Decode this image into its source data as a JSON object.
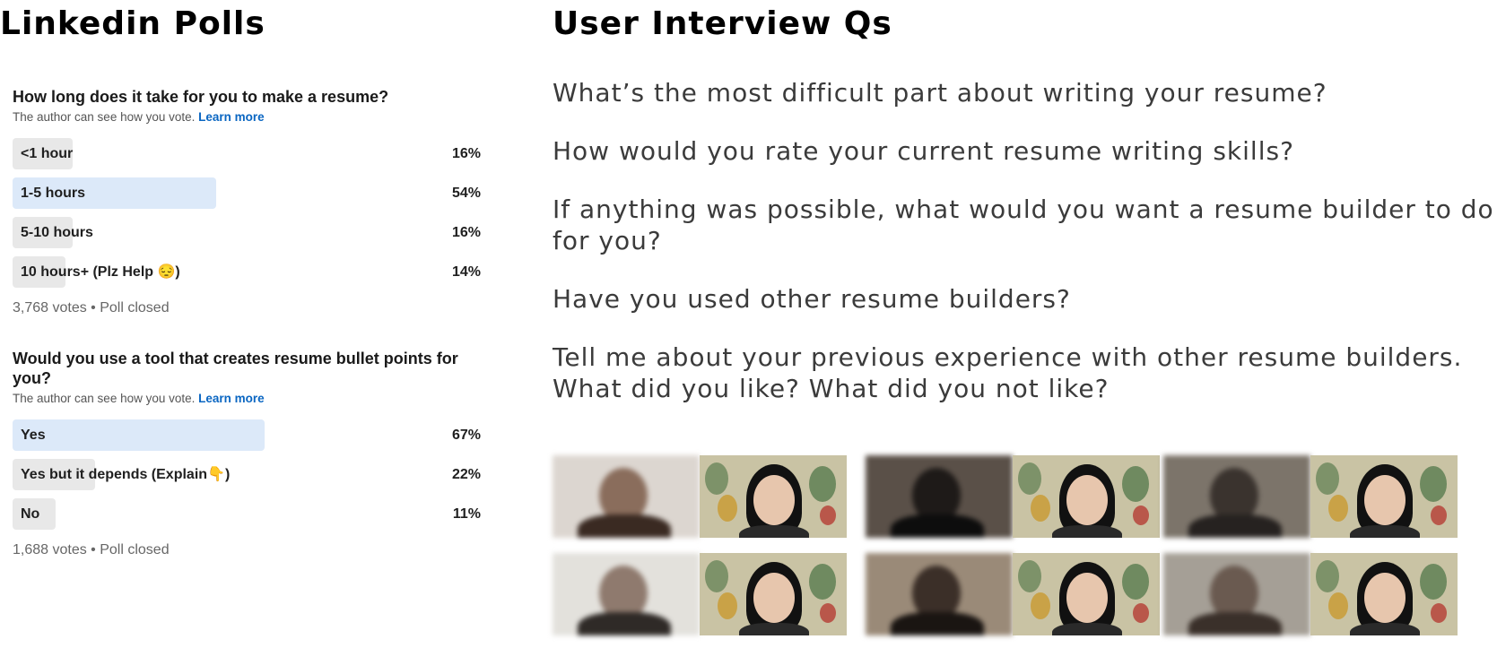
{
  "left": {
    "title": "Linkedin Polls",
    "polls": [
      {
        "question": "How long does it take for you to make a resume?",
        "note": "The author can see how you vote.",
        "learn_more": "Learn more",
        "options": [
          {
            "label": "<1 hour",
            "pct_text": "16%",
            "pct": 16
          },
          {
            "label": "1-5 hours",
            "pct_text": "54%",
            "pct": 54
          },
          {
            "label": "5-10 hours",
            "pct_text": "16%",
            "pct": 16
          },
          {
            "label": "10 hours+ (Plz Help 😔)",
            "pct_text": "14%",
            "pct": 14
          }
        ],
        "meta": "3,768 votes • Poll closed"
      },
      {
        "question": "Would you use a tool that creates resume bullet points for you?",
        "note": "The author can see how you vote.",
        "learn_more": "Learn more",
        "options": [
          {
            "label": "Yes",
            "pct_text": "67%",
            "pct": 67
          },
          {
            "label": "Yes but it depends (Explain👇)",
            "pct_text": "22%",
            "pct": 22
          },
          {
            "label": "No",
            "pct_text": "11%",
            "pct": 11
          }
        ],
        "meta": "1,688 votes • Poll closed"
      }
    ]
  },
  "right": {
    "title": "User Interview Qs",
    "questions": [
      "What’s the most difficult part about writing your resume?",
      "How would you rate your current resume writing skills?",
      "If anything was possible, what would you want a resume builder to do for you?",
      "Have you used other resume builders?",
      "Tell me about your previous experience with other resume builders. What did you like? What did you not like?"
    ],
    "thumbnail_count": 6
  },
  "colors": {
    "accent_link": "#0a66c2",
    "bar_winner": "#dce9f9",
    "bar_default": "#e8e8e8"
  }
}
